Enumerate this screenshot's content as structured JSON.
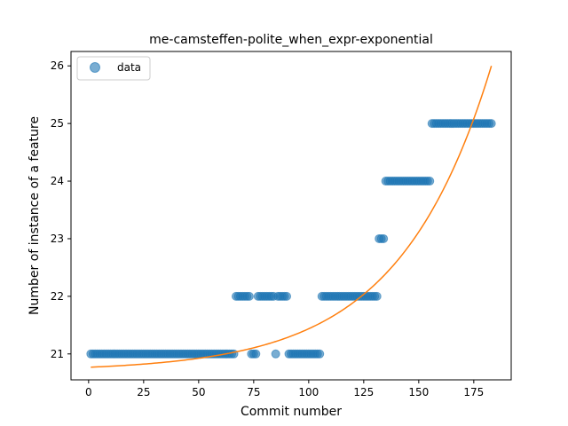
{
  "chart_data": {
    "type": "scatter",
    "title": "me-camsteffen-polite_when_expr-exponential",
    "xlabel": "Commit number",
    "ylabel": "Number of instance of a feature",
    "xlim": [
      -8,
      192
    ],
    "ylim": [
      20.55,
      26.25
    ],
    "xticks": [
      0,
      25,
      50,
      75,
      100,
      125,
      150,
      175
    ],
    "yticks": [
      21,
      22,
      23,
      24,
      25,
      26
    ],
    "legend": {
      "position": "top-left",
      "entries": [
        "data"
      ]
    },
    "colors": {
      "data": "#1f77b4",
      "fit": "#ff7f0e"
    },
    "series": [
      {
        "name": "data",
        "kind": "scatter",
        "segments": [
          {
            "x_from": 1,
            "x_to": 66,
            "y": 21
          },
          {
            "x_from": 67,
            "x_to": 73,
            "y": 22
          },
          {
            "x_from": 74,
            "x_to": 76,
            "y": 21
          },
          {
            "x_from": 77,
            "x_to": 84,
            "y": 22
          },
          {
            "x_from": 85,
            "x_to": 85,
            "y": 21
          },
          {
            "x_from": 86,
            "x_to": 90,
            "y": 22
          },
          {
            "x_from": 91,
            "x_to": 105,
            "y": 21
          },
          {
            "x_from": 106,
            "x_to": 131,
            "y": 22
          },
          {
            "x_from": 132,
            "x_to": 134,
            "y": 23
          },
          {
            "x_from": 135,
            "x_to": 155,
            "y": 24
          },
          {
            "x_from": 156,
            "x_to": 183,
            "y": 25
          }
        ]
      },
      {
        "name": "",
        "kind": "line",
        "x_range": [
          1,
          183
        ],
        "y_start": 20.77,
        "y_end": 26.0,
        "y_min": 20.7
      }
    ]
  }
}
